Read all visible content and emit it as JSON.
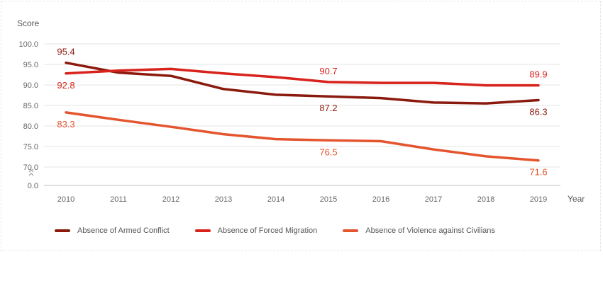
{
  "chart_data": {
    "type": "line",
    "ylabel": "Score",
    "xlabel": "Year",
    "x": [
      "2010",
      "2011",
      "2012",
      "2013",
      "2014",
      "2015",
      "2016",
      "2017",
      "2018",
      "2019"
    ],
    "y_ticks": [
      "100.0",
      "95.0",
      "90.0",
      "85.0",
      "80.0",
      "75.0",
      "70.0",
      "0.0"
    ],
    "ylim": [
      0,
      100
    ],
    "axis_break": true,
    "grid": true,
    "legend_position": "bottom",
    "series": [
      {
        "name": "Absence of Armed Conflict",
        "color": "#8b1a0e",
        "values": [
          95.4,
          93.0,
          92.2,
          89.0,
          87.6,
          87.2,
          86.8,
          85.7,
          85.5,
          86.3
        ],
        "labels": [
          {
            "index": 0,
            "text": "95.4",
            "pos": "above"
          },
          {
            "index": 5,
            "text": "87.2",
            "pos": "below"
          },
          {
            "index": 9,
            "text": "86.3",
            "pos": "below"
          }
        ]
      },
      {
        "name": "Absence of Forced Migration",
        "color": "#d7231c",
        "values": [
          92.8,
          93.5,
          93.9,
          92.8,
          91.9,
          90.7,
          90.5,
          90.5,
          89.9,
          89.9
        ],
        "labels": [
          {
            "index": 0,
            "text": "92.8",
            "pos": "below"
          },
          {
            "index": 5,
            "text": "90.7",
            "pos": "above"
          },
          {
            "index": 9,
            "text": "89.9",
            "pos": "above"
          }
        ]
      },
      {
        "name": "Absence of Violence against Civilians",
        "color": "#e4552e",
        "values": [
          83.3,
          81.5,
          79.8,
          78.0,
          76.8,
          76.5,
          76.3,
          74.3,
          72.6,
          71.6
        ],
        "labels": [
          {
            "index": 0,
            "text": "83.3",
            "pos": "below"
          },
          {
            "index": 5,
            "text": "76.5",
            "pos": "below"
          },
          {
            "index": 9,
            "text": "71.6",
            "pos": "below"
          }
        ]
      }
    ]
  }
}
